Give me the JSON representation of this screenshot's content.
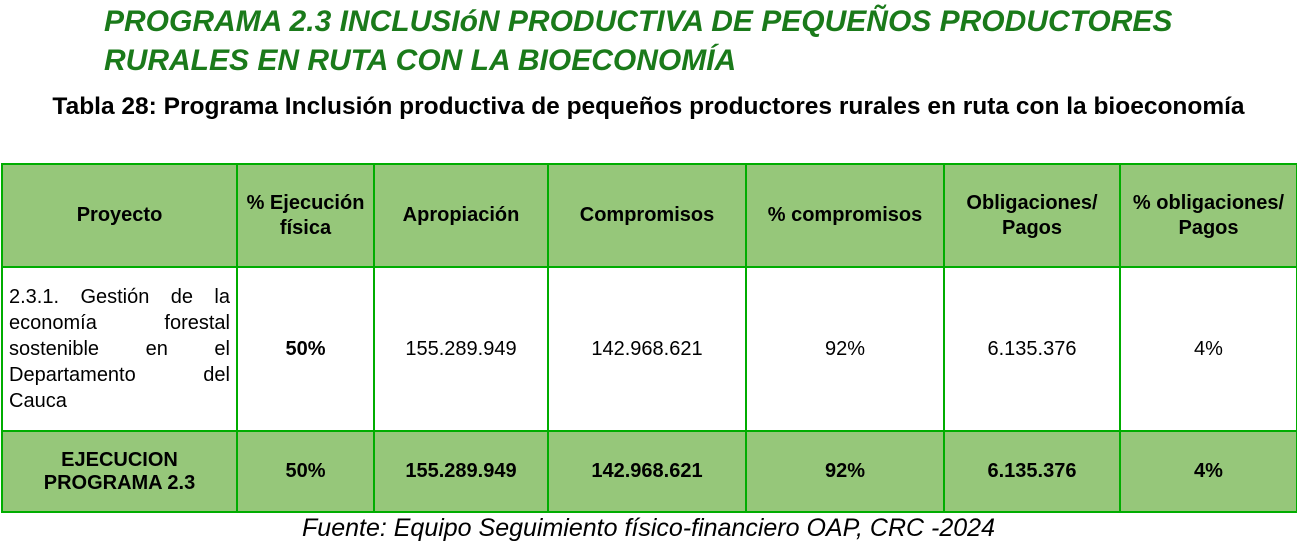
{
  "program_heading": "PROGRAMA 2.3 INCLUSIóN PRODUCTIVA DE PEQUEÑOS PRODUCTORES RURALES EN RUTA CON LA BIOECONOMÍA",
  "table_caption": "Tabla 28: Programa Inclusión productiva de pequeños productores rurales en ruta con la bioeconomía",
  "headers": {
    "proyecto": "Proyecto",
    "ejecucion_fisica": "% Ejecución física",
    "apropiacion": "Apropiación",
    "compromisos": "Compromisos",
    "pct_compromisos": "% compromisos",
    "obligaciones": "Obligaciones/ Pagos",
    "pct_obligaciones": "% obligaciones/ Pagos"
  },
  "rows": [
    {
      "proyecto": "2.3.1. Gestión de la economía forestal sostenible en el Departamento del Cauca",
      "ejecucion_fisica": "50%",
      "apropiacion": "155.289.949",
      "compromisos": "142.968.621",
      "pct_compromisos": "92%",
      "obligaciones": "6.135.376",
      "pct_obligaciones": "4%"
    }
  ],
  "total": {
    "label": "EJECUCION PROGRAMA 2.3",
    "ejecucion_fisica": "50%",
    "apropiacion": "155.289.949",
    "compromisos": "142.968.621",
    "pct_compromisos": "92%",
    "obligaciones": "6.135.376",
    "pct_obligaciones": "4%"
  },
  "source_note": "Fuente: Equipo Seguimiento físico-financiero OAP, CRC -2024",
  "colors": {
    "heading": "#1a7a1a",
    "header_fill": "#96c77a",
    "border": "#00ad00"
  }
}
